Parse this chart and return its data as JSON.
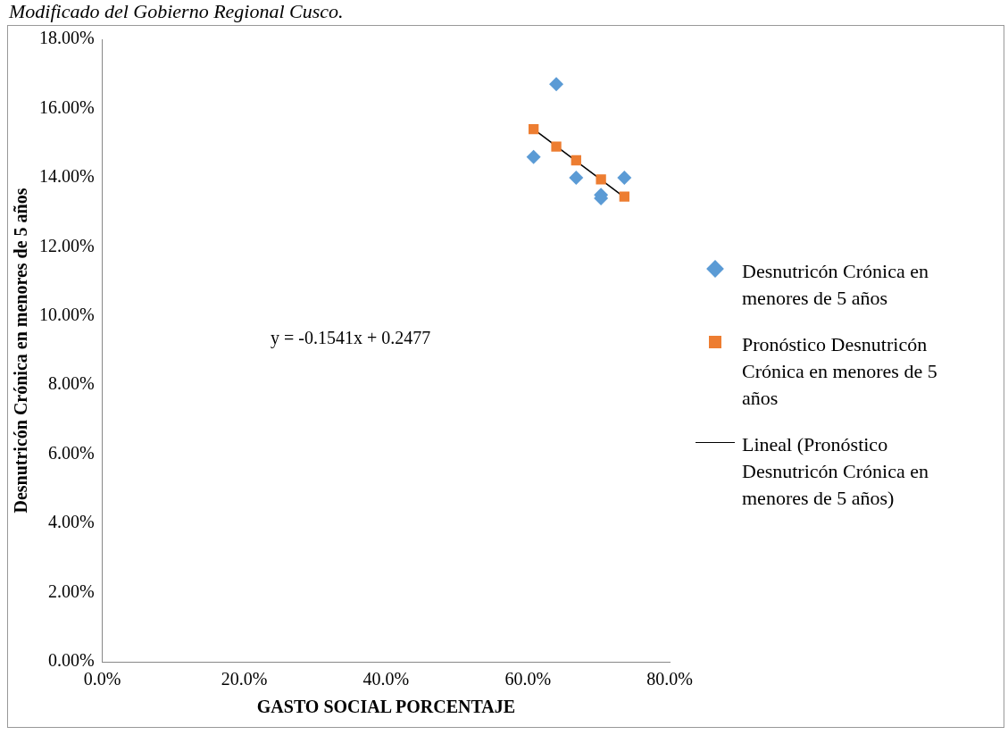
{
  "chart_data": {
    "type": "scatter",
    "xlabel": "GASTO SOCIAL PORCENTAJE",
    "ylabel": "Desnutricón Crónica en menores de 5 años",
    "xlim": [
      0,
      80
    ],
    "xticks": [
      {
        "value": 0,
        "label": "0.0%"
      },
      {
        "value": 20,
        "label": "20.0%"
      },
      {
        "value": 40,
        "label": "40.0%"
      },
      {
        "value": 60,
        "label": "60.0%"
      },
      {
        "value": 80,
        "label": "80.0%"
      }
    ],
    "ylim": [
      0,
      18
    ],
    "yticks": [
      {
        "value": 0,
        "label": "0.00%"
      },
      {
        "value": 2,
        "label": "2.00%"
      },
      {
        "value": 4,
        "label": "4.00%"
      },
      {
        "value": 6,
        "label": "6.00%"
      },
      {
        "value": 8,
        "label": "8.00%"
      },
      {
        "value": 10,
        "label": "10.00%"
      },
      {
        "value": 12,
        "label": "12.00%"
      },
      {
        "value": 14,
        "label": "14.00%"
      },
      {
        "value": 16,
        "label": "16.00%"
      },
      {
        "value": 18,
        "label": "18.00%"
      }
    ],
    "grid": false,
    "legend": "right",
    "annotations": [
      "Modificado del Gobierno Regional Cusco.",
      "y = -0.1541x + 0.2477"
    ],
    "series": [
      {
        "name": "Desnutricón Crónica en menores de 5 años",
        "marker": "diamond",
        "color": "#5b9bd5",
        "x": [
          64.0,
          60.8,
          66.8,
          70.3,
          70.3,
          73.6
        ],
        "values": [
          16.7,
          14.6,
          14.0,
          13.5,
          13.4,
          14.0
        ]
      },
      {
        "name": "Pronóstico Desnutricón Crónica en menores de 5 años",
        "type": "scatter",
        "marker": "square",
        "color": "#ed7d31",
        "x": [
          60.8,
          64.0,
          66.8,
          70.3,
          73.6
        ],
        "values": [
          15.4,
          14.9,
          14.5,
          13.95,
          13.45
        ]
      },
      {
        "name": "Lineal (Pronóstico Desnutricón Crónica en menores de 5 años)",
        "type": "line",
        "marker": "none",
        "color": "#000000",
        "x": [
          60.8,
          73.6
        ],
        "values": [
          15.4,
          13.43
        ]
      }
    ]
  }
}
